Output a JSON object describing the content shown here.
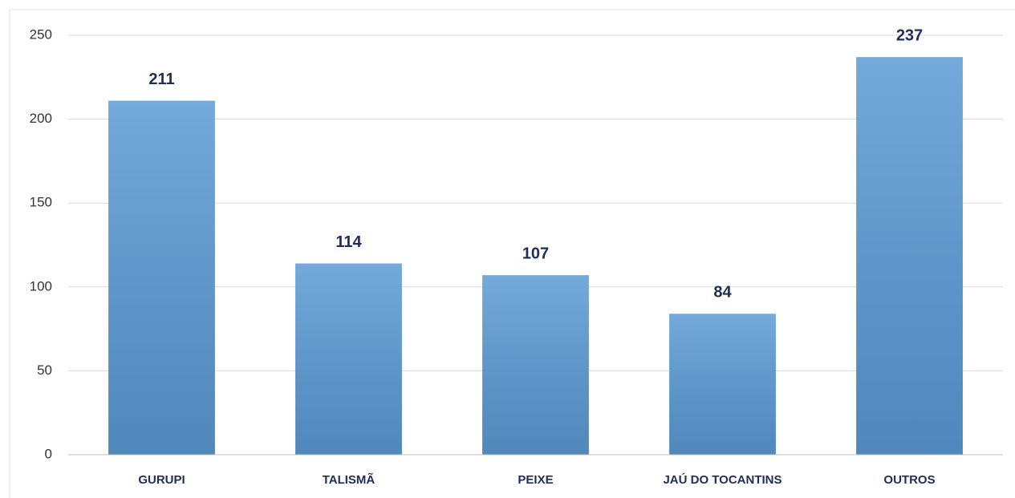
{
  "chart_data": {
    "type": "bar",
    "categories": [
      "GURUPI",
      "TALISMÃ",
      "PEIXE",
      "JAÚ DO TOCANTINS",
      "OUTROS"
    ],
    "values": [
      211,
      114,
      107,
      84,
      237
    ],
    "color": "#5b9bd5",
    "ylim": [
      0,
      250
    ],
    "yticks": [
      0,
      50,
      100,
      150,
      200,
      250
    ],
    "grid": true
  }
}
